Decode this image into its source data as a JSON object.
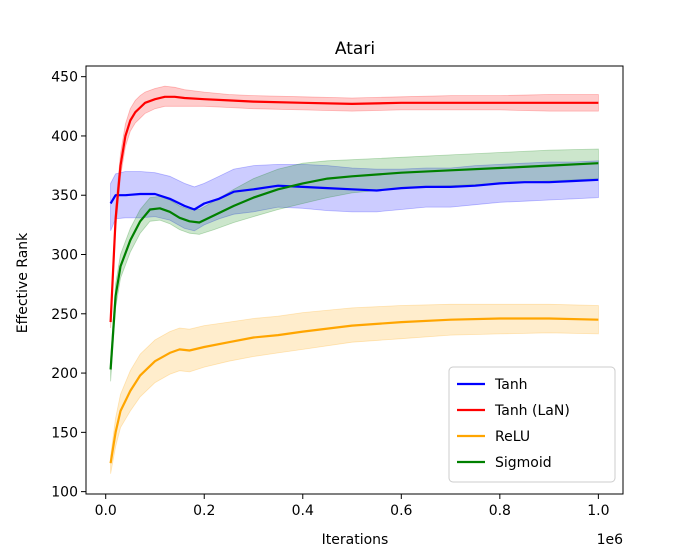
{
  "chart_data": {
    "type": "line",
    "title": "Atari",
    "xlabel": "Iterations",
    "ylabel": "Effective Rank",
    "x_offset_label": "1e6",
    "xlim": [
      -0.04,
      1.05
    ],
    "ylim": [
      98,
      459
    ],
    "xticks": [
      0.0,
      0.2,
      0.4,
      0.6,
      0.8,
      1.0
    ],
    "xtick_labels": [
      "0.0",
      "0.2",
      "0.4",
      "0.6",
      "0.8",
      "1.0"
    ],
    "yticks": [
      100,
      150,
      200,
      250,
      300,
      350,
      400,
      450
    ],
    "ytick_labels": [
      "100",
      "150",
      "200",
      "250",
      "300",
      "350",
      "400",
      "450"
    ],
    "legend_position": "bottom-right",
    "series": [
      {
        "name": "Tanh",
        "color": "#0000ff",
        "x": [
          0.01,
          0.02,
          0.04,
          0.07,
          0.1,
          0.13,
          0.16,
          0.18,
          0.2,
          0.23,
          0.26,
          0.3,
          0.35,
          0.4,
          0.45,
          0.5,
          0.55,
          0.6,
          0.65,
          0.7,
          0.75,
          0.8,
          0.85,
          0.9,
          0.95,
          1.0
        ],
        "y": [
          343,
          350,
          350,
          351,
          351,
          347,
          341,
          338,
          343,
          347,
          353,
          355,
          358,
          357,
          356,
          355,
          354,
          356,
          357,
          357,
          358,
          360,
          361,
          361,
          362,
          363
        ],
        "upper": [
          360,
          368,
          370,
          370,
          369,
          366,
          360,
          357,
          360,
          366,
          372,
          375,
          376,
          376,
          375,
          373,
          372,
          372,
          373,
          373,
          375,
          376,
          377,
          378,
          378,
          379
        ],
        "lower": [
          320,
          330,
          331,
          331,
          332,
          329,
          322,
          320,
          325,
          330,
          334,
          336,
          340,
          339,
          337,
          336,
          336,
          338,
          340,
          340,
          342,
          344,
          345,
          346,
          347,
          348
        ]
      },
      {
        "name": "Tanh (LaN)",
        "color": "#ff0000",
        "x": [
          0.01,
          0.02,
          0.03,
          0.04,
          0.05,
          0.06,
          0.07,
          0.08,
          0.1,
          0.12,
          0.14,
          0.16,
          0.2,
          0.25,
          0.3,
          0.4,
          0.5,
          0.6,
          0.7,
          0.8,
          0.9,
          1.0
        ],
        "y": [
          243,
          330,
          375,
          400,
          413,
          420,
          424,
          428,
          431,
          433,
          433,
          432,
          431,
          430,
          429,
          428,
          427,
          428,
          428,
          428,
          428,
          428
        ],
        "upper": [
          250,
          340,
          385,
          410,
          423,
          430,
          434,
          437,
          440,
          442,
          441,
          439,
          437,
          435,
          434,
          433,
          432,
          433,
          434,
          434,
          435,
          435
        ],
        "lower": [
          238,
          320,
          366,
          391,
          404,
          411,
          415,
          419,
          423,
          425,
          425,
          425,
          425,
          424,
          423,
          422,
          421,
          422,
          422,
          422,
          421,
          421
        ]
      },
      {
        "name": "ReLU",
        "color": "#ffa500",
        "x": [
          0.01,
          0.02,
          0.03,
          0.05,
          0.07,
          0.1,
          0.13,
          0.15,
          0.17,
          0.2,
          0.25,
          0.3,
          0.35,
          0.4,
          0.5,
          0.6,
          0.7,
          0.8,
          0.9,
          1.0
        ],
        "y": [
          124,
          150,
          168,
          185,
          198,
          210,
          217,
          220,
          219,
          222,
          226,
          230,
          232,
          235,
          240,
          243,
          245,
          246,
          246,
          245
        ],
        "upper": [
          130,
          162,
          182,
          202,
          216,
          228,
          235,
          238,
          237,
          240,
          243,
          246,
          248,
          251,
          255,
          257,
          258,
          258,
          258,
          257
        ],
        "lower": [
          115,
          138,
          154,
          168,
          180,
          192,
          199,
          202,
          201,
          205,
          210,
          214,
          217,
          220,
          226,
          229,
          232,
          233,
          234,
          233
        ]
      },
      {
        "name": "Sigmoid",
        "color": "#008000",
        "x": [
          0.01,
          0.02,
          0.03,
          0.05,
          0.07,
          0.09,
          0.11,
          0.13,
          0.15,
          0.17,
          0.19,
          0.22,
          0.26,
          0.3,
          0.35,
          0.4,
          0.45,
          0.5,
          0.6,
          0.7,
          0.8,
          0.9,
          1.0
        ],
        "y": [
          203,
          265,
          290,
          312,
          328,
          338,
          339,
          336,
          331,
          328,
          327,
          333,
          341,
          348,
          355,
          360,
          364,
          366,
          369,
          371,
          373,
          375,
          377
        ],
        "upper": [
          212,
          275,
          300,
          322,
          338,
          348,
          349,
          346,
          341,
          338,
          338,
          345,
          355,
          364,
          372,
          377,
          379,
          380,
          382,
          384,
          386,
          388,
          389
        ],
        "lower": [
          193,
          255,
          280,
          302,
          318,
          328,
          329,
          326,
          321,
          318,
          317,
          321,
          327,
          332,
          338,
          343,
          348,
          352,
          356,
          358,
          360,
          362,
          364
        ]
      }
    ]
  }
}
